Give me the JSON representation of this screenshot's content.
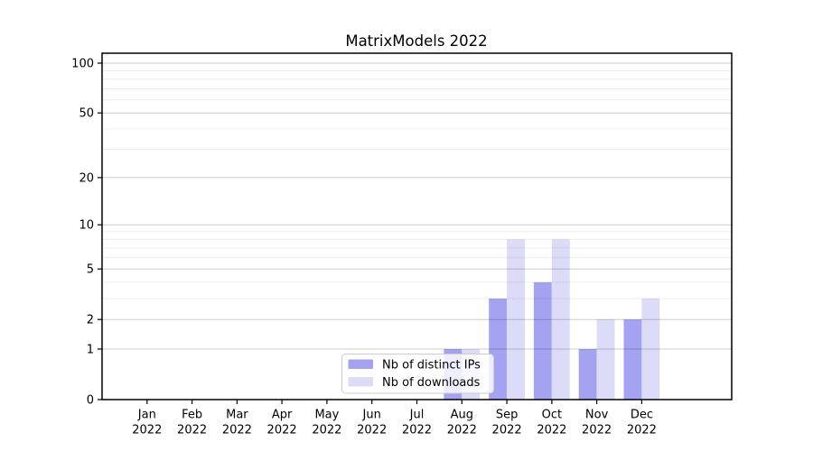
{
  "figure": {
    "background": "#ffffff"
  },
  "title": "MatrixModels 2022",
  "colors": {
    "ips_bar": "#a3a3f1",
    "downloads_bar": "#dcdcf8",
    "spine": "#000000",
    "tick": "#000000",
    "grid_stroke": "#000000",
    "grid_major_opacity": 0.2,
    "grid_minor_opacity": 0.075,
    "legend_border": "#cccccc",
    "legend_background": "#ffffff",
    "legend_background_opacity": 0.8
  },
  "legend": {
    "items": [
      {
        "label": "Nb of distinct IPs"
      },
      {
        "label": "Nb of downloads"
      }
    ]
  },
  "chart_data": {
    "type": "bar",
    "title": "MatrixModels 2022",
    "categories": [
      "Jan",
      "Feb",
      "Mar",
      "Apr",
      "May",
      "Jun",
      "Jul",
      "Aug",
      "Sep",
      "Oct",
      "Nov",
      "Dec"
    ],
    "x_tick_year": "2022",
    "series": [
      {
        "name": "Nb of distinct IPs",
        "color": "#a3a3f1",
        "values": [
          0,
          0,
          0,
          0,
          0,
          0,
          0,
          1,
          3,
          4,
          1,
          2
        ]
      },
      {
        "name": "Nb of downloads",
        "color": "#dcdcf8",
        "values": [
          0,
          0,
          0,
          0,
          0,
          0,
          0,
          1,
          8,
          8,
          2,
          3
        ]
      }
    ],
    "xlabel": "",
    "ylabel": "",
    "yscale": "log1p",
    "ylim": [
      0,
      115
    ],
    "yticks": [
      0,
      1,
      2,
      5,
      10,
      20,
      50,
      100
    ],
    "yticks_minor": [
      3,
      4,
      6,
      7,
      8,
      9,
      30,
      40,
      60,
      70,
      80,
      90
    ],
    "grid": "horizontal, major and minor, drawn over bars",
    "legend_position": "lower center",
    "bar_width_fraction": 0.4
  }
}
